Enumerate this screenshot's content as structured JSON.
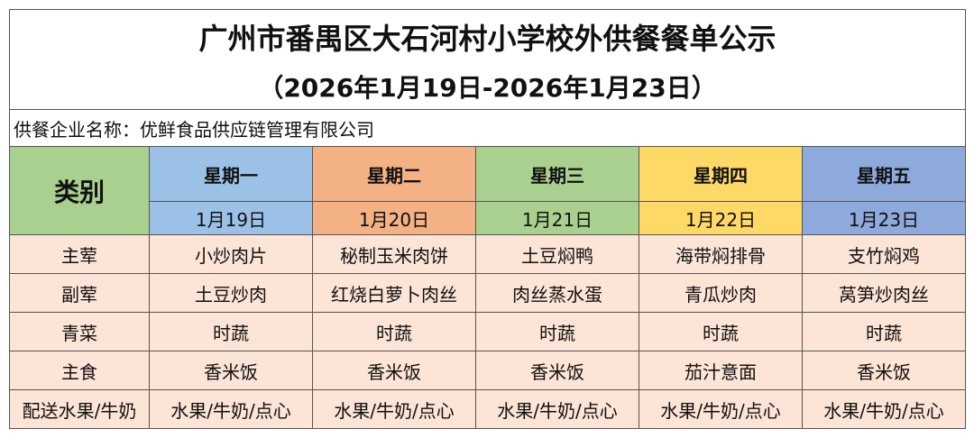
{
  "title": "广州市番禺区大石河村小学校外供餐餐单公示",
  "subtitle": "（2026年1月19日-2026年1月23日）",
  "company": "供餐企业名称：优鲜食品供应链管理有限公司",
  "category_label": "类别",
  "days": [
    {
      "weekday": "星期一",
      "date": "1月19日"
    },
    {
      "weekday": "星期二",
      "date": "1月20日"
    },
    {
      "weekday": "星期三",
      "date": "1月21日"
    },
    {
      "weekday": "星期四",
      "date": "1月22日"
    },
    {
      "weekday": "星期五",
      "date": "1月23日"
    }
  ],
  "rows": [
    {
      "category": "主荤",
      "items": [
        "小炒肉片",
        "秘制玉米肉饼",
        "土豆焖鸭",
        "海带焖排骨",
        "支竹焖鸡"
      ]
    },
    {
      "category": "副荤",
      "items": [
        "土豆炒肉",
        "红烧白萝卜肉丝",
        "肉丝蒸水蛋",
        "青瓜炒肉",
        "莴笋炒肉丝"
      ]
    },
    {
      "category": "青菜",
      "items": [
        "时蔬",
        "时蔬",
        "时蔬",
        "时蔬",
        "时蔬"
      ]
    },
    {
      "category": "主食",
      "items": [
        "香米饭",
        "香米饭",
        "香米饭",
        "茄汁意面",
        "香米饭"
      ]
    },
    {
      "category": "配送水果/牛奶",
      "items": [
        "水果/牛奶/点心",
        "水果/牛奶/点心",
        "水果/牛奶/点心",
        "水果/牛奶/点心",
        "水果/牛奶/点心"
      ]
    }
  ],
  "colors": {
    "category": "#a9d08e",
    "monday": "#9bc2e6",
    "tuesday": "#f4b183",
    "wednesday": "#a9d08e",
    "thursday": "#ffd966",
    "friday": "#8ea9db",
    "body": "#fce4d6"
  }
}
